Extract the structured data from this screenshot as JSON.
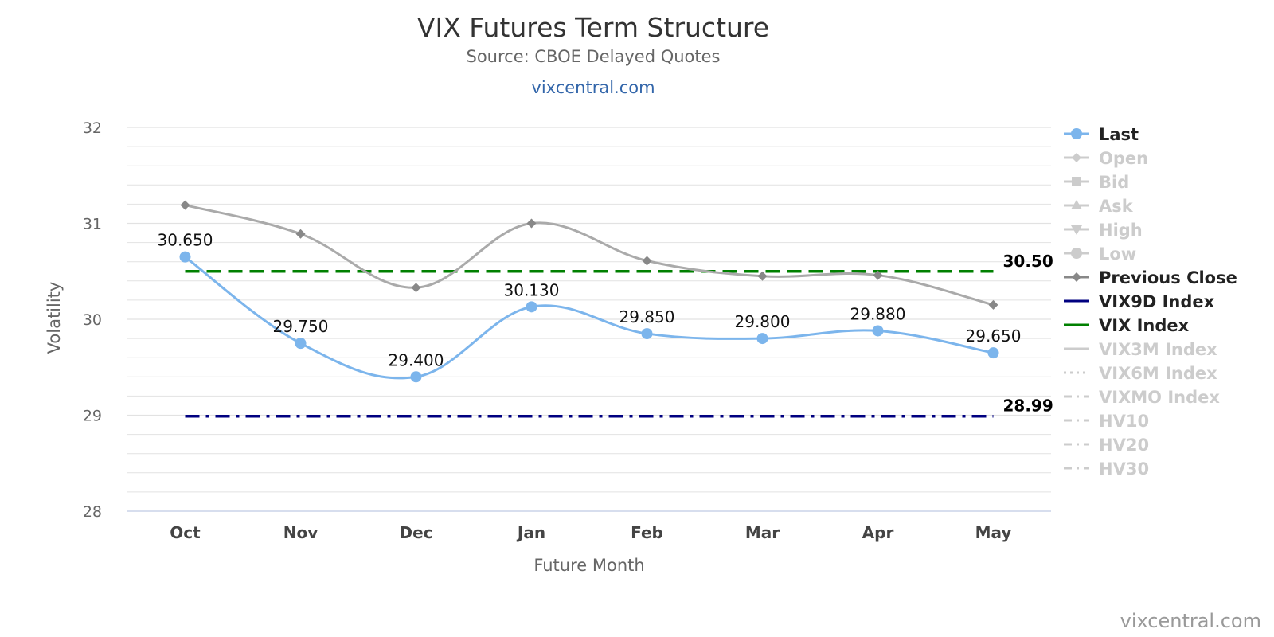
{
  "chart_data": {
    "type": "line",
    "title": "VIX Futures Term Structure",
    "subtitle": "Source: CBOE Delayed Quotes",
    "site_label": "vixcentral.com",
    "watermark": "vixcentral.com",
    "xlabel": "Future Month",
    "ylabel": "Volatility",
    "ylim": [
      28,
      32
    ],
    "yticks": [
      "28",
      "29",
      "30",
      "31",
      "32"
    ],
    "categories": [
      "Oct",
      "Nov",
      "Dec",
      "Jan",
      "Feb",
      "Mar",
      "Apr",
      "May"
    ],
    "grid": true,
    "legend_position": "right",
    "series": [
      {
        "name": "Last",
        "values": [
          30.65,
          29.75,
          29.4,
          30.13,
          29.85,
          29.8,
          29.88,
          29.65
        ],
        "data_labels": [
          "30.650",
          "29.750",
          "29.400",
          "30.130",
          "29.850",
          "29.800",
          "29.880",
          "29.650"
        ],
        "color": "#7cb5ec",
        "marker": "circle",
        "visible": true
      },
      {
        "name": "Previous Close",
        "values": [
          31.19,
          30.89,
          30.33,
          31.0,
          30.61,
          30.45,
          30.46,
          30.15
        ],
        "color": "#aaaaaa",
        "marker": "diamond",
        "visible": true
      }
    ],
    "reference_lines": [
      {
        "name": "VIX9D Index",
        "value": 28.99,
        "label": "28.99",
        "color": "#000080",
        "dash": "dashdot"
      },
      {
        "name": "VIX Index",
        "value": 30.5,
        "label": "30.50",
        "color": "#008000",
        "dash": "dash"
      }
    ],
    "legend": [
      {
        "label": "Last",
        "active": true,
        "symbol": "circle",
        "color": "#7cb5ec",
        "line": "solid"
      },
      {
        "label": "Open",
        "active": false,
        "symbol": "diamond",
        "color": "#cccccc",
        "line": "solid"
      },
      {
        "label": "Bid",
        "active": false,
        "symbol": "square",
        "color": "#cccccc",
        "line": "solid"
      },
      {
        "label": "Ask",
        "active": false,
        "symbol": "triangle",
        "color": "#cccccc",
        "line": "solid"
      },
      {
        "label": "High",
        "active": false,
        "symbol": "triangle-down",
        "color": "#cccccc",
        "line": "solid"
      },
      {
        "label": "Low",
        "active": false,
        "symbol": "circle",
        "color": "#cccccc",
        "line": "solid"
      },
      {
        "label": "Previous Close",
        "active": true,
        "symbol": "diamond",
        "color": "#888888",
        "line": "solid"
      },
      {
        "label": "VIX9D Index",
        "active": true,
        "symbol": "none",
        "color": "#000080",
        "line": "solid"
      },
      {
        "label": "VIX Index",
        "active": true,
        "symbol": "none",
        "color": "#008000",
        "line": "solid"
      },
      {
        "label": "VIX3M Index",
        "active": false,
        "symbol": "none",
        "color": "#cccccc",
        "line": "solid"
      },
      {
        "label": "VIX6M Index",
        "active": false,
        "symbol": "none",
        "color": "#cccccc",
        "line": "dotted"
      },
      {
        "label": "VIXMO Index",
        "active": false,
        "symbol": "none",
        "color": "#cccccc",
        "line": "dashdot"
      },
      {
        "label": "HV10",
        "active": false,
        "symbol": "none",
        "color": "#cccccc",
        "line": "dashdot"
      },
      {
        "label": "HV20",
        "active": false,
        "symbol": "none",
        "color": "#cccccc",
        "line": "dashdot"
      },
      {
        "label": "HV30",
        "active": false,
        "symbol": "none",
        "color": "#cccccc",
        "line": "dashdot"
      }
    ]
  }
}
